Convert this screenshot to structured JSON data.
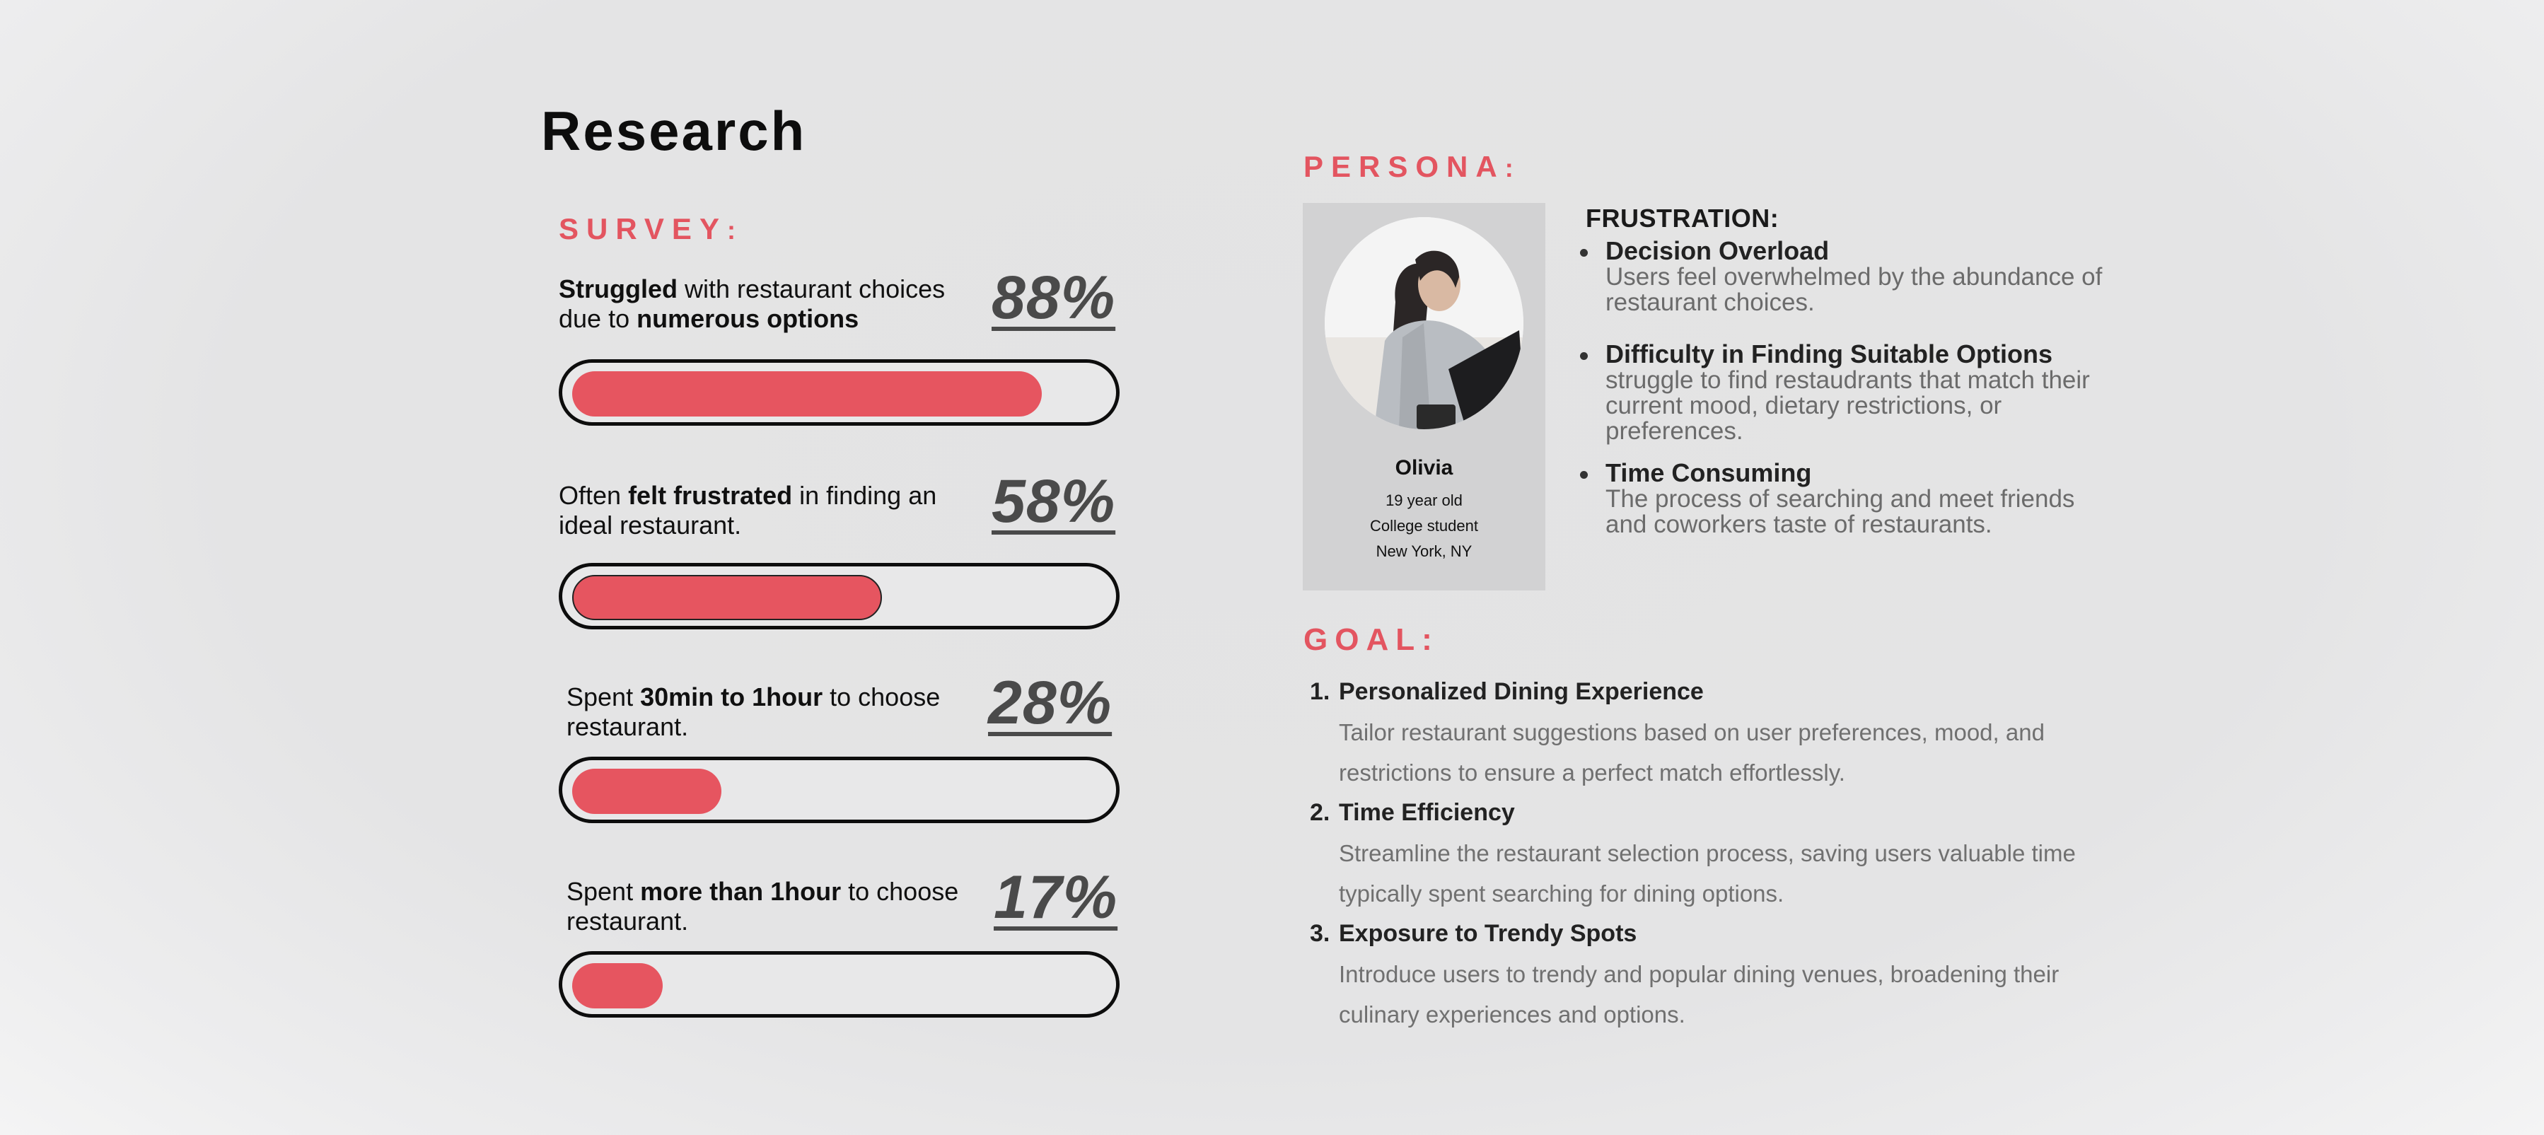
{
  "page": {
    "title": "Research"
  },
  "survey": {
    "label": "SURVEY",
    "label_suffix": ":",
    "items": [
      {
        "parts": [
          {
            "t": "Struggled",
            "b": true
          },
          {
            "t": " with restaurant choices due to ",
            "b": false
          },
          {
            "t": "numerous options",
            "b": true
          }
        ],
        "percent_label": "88%",
        "value": 88
      },
      {
        "parts": [
          {
            "t": "Often ",
            "b": false
          },
          {
            "t": "felt frustrated",
            "b": true
          },
          {
            "t": " in finding an ideal restaurant.",
            "b": false
          }
        ],
        "percent_label": "58%",
        "value": 58
      },
      {
        "parts": [
          {
            "t": "Spent ",
            "b": false
          },
          {
            "t": "30min to 1hour",
            "b": true
          },
          {
            "t": " to choose restaurant.",
            "b": false
          }
        ],
        "percent_label": "28%",
        "value": 28
      },
      {
        "parts": [
          {
            "t": "Spent ",
            "b": false
          },
          {
            "t": "more than 1hour",
            "b": true
          },
          {
            "t": " to choose restaurant.",
            "b": false
          }
        ],
        "percent_label": "17%",
        "value": 17
      }
    ]
  },
  "persona": {
    "label": "PERSONA",
    "label_suffix": ":",
    "name": "Olivia",
    "age": "19 year old",
    "occupation": "College student",
    "location": "New York, NY"
  },
  "frustration": {
    "title": "FRUSTRATION:",
    "items": [
      {
        "head": "Decision Overload",
        "body": "Users feel overwhelmed by the abundance of restaurant choices."
      },
      {
        "head": "Difficulty in Finding Suitable Options",
        "body": "struggle to find restaudrants that match their current mood, dietary restrictions, or preferences."
      },
      {
        "head": "Time Consuming",
        "body": "The process of searching and meet friends and coworkers taste of restaurants."
      }
    ]
  },
  "goal": {
    "label": "GOAL:",
    "items": [
      {
        "num": "1.",
        "head": "Personalized Dining Experience",
        "body": "Tailor restaurant suggestions based on user preferences, mood, and restrictions to ensure a perfect match effortlessly."
      },
      {
        "num": "2.",
        "head": "Time Efficiency",
        "body": "Streamline the restaurant selection process, saving users valuable time typically spent searching for dining options."
      },
      {
        "num": "3.",
        "head": "Exposure to Trendy Spots",
        "body": "Introduce users to trendy and popular dining venues, broadening their culinary experiences and options."
      }
    ]
  },
  "colors": {
    "accent": "#e65560",
    "text_dark": "#111111",
    "text_muted": "#6b6b6b",
    "card_bg": "#d2d2d3"
  }
}
